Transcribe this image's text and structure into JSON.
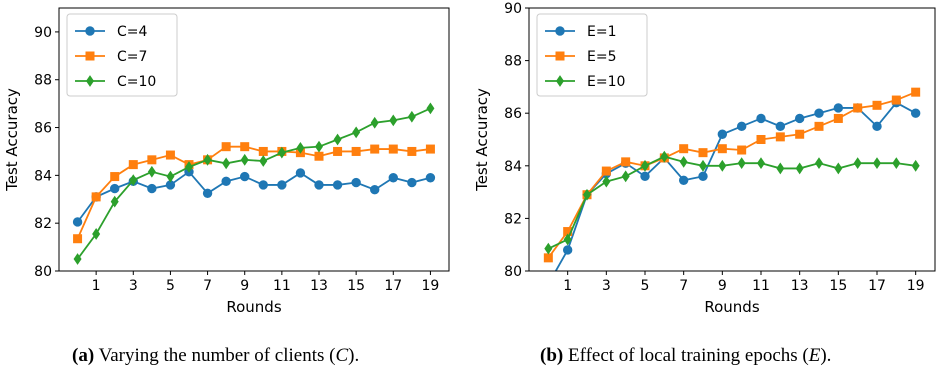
{
  "chart_data": [
    {
      "type": "line",
      "xlabel": "Rounds",
      "ylabel": "Test Accuracy",
      "xticks": [
        1,
        3,
        5,
        7,
        9,
        11,
        13,
        15,
        17,
        19
      ],
      "yticks": [
        80,
        82,
        84,
        86,
        88,
        90
      ],
      "xlim": [
        -1,
        20
      ],
      "ylim": [
        80,
        91
      ],
      "grid": false,
      "legend_position": "top-left",
      "x": [
        0,
        1,
        2,
        3,
        4,
        5,
        6,
        7,
        8,
        9,
        10,
        11,
        12,
        13,
        14,
        15,
        16,
        17,
        18,
        19
      ],
      "series": [
        {
          "name": "C=4",
          "color": "#1f77b4",
          "marker": "circle",
          "values": [
            82.05,
            83.1,
            83.45,
            83.75,
            83.45,
            83.6,
            84.15,
            83.25,
            83.75,
            83.95,
            83.6,
            83.6,
            84.1,
            83.6,
            83.6,
            83.7,
            83.4,
            83.9,
            83.7,
            83.9
          ]
        },
        {
          "name": "C=7",
          "color": "#ff7f0e",
          "marker": "square",
          "values": [
            81.35,
            83.1,
            83.95,
            84.45,
            84.65,
            84.85,
            84.45,
            84.65,
            85.2,
            85.2,
            85.0,
            85.0,
            84.95,
            84.8,
            85.0,
            85.0,
            85.1,
            85.1,
            85.0,
            85.1
          ]
        },
        {
          "name": "C=10",
          "color": "#2ca02c",
          "marker": "diamond",
          "values": [
            80.5,
            81.55,
            82.9,
            83.8,
            84.15,
            83.95,
            84.35,
            84.65,
            84.5,
            84.65,
            84.6,
            84.95,
            85.15,
            85.2,
            85.5,
            85.8,
            86.2,
            86.3,
            86.45,
            86.8
          ]
        }
      ]
    },
    {
      "type": "line",
      "xlabel": "Rounds",
      "ylabel": "Test Accuracy",
      "xticks": [
        1,
        3,
        5,
        7,
        9,
        11,
        13,
        15,
        17,
        19
      ],
      "yticks": [
        80,
        82,
        84,
        86,
        88,
        90
      ],
      "xlim": [
        -1,
        20
      ],
      "ylim": [
        80,
        90
      ],
      "grid": false,
      "legend_position": "top-left",
      "x": [
        0,
        1,
        2,
        3,
        4,
        5,
        6,
        7,
        8,
        9,
        10,
        11,
        12,
        13,
        14,
        15,
        16,
        17,
        18,
        19
      ],
      "series": [
        {
          "name": "E=1",
          "color": "#1f77b4",
          "marker": "circle",
          "values": [
            79.5,
            80.8,
            82.9,
            83.7,
            84.1,
            83.6,
            84.3,
            83.45,
            83.6,
            85.2,
            85.5,
            85.8,
            85.5,
            85.8,
            86.0,
            86.2,
            86.2,
            85.5,
            86.4,
            86.0
          ]
        },
        {
          "name": "E=5",
          "color": "#ff7f0e",
          "marker": "square",
          "values": [
            80.5,
            81.5,
            82.9,
            83.8,
            84.15,
            84.0,
            84.3,
            84.65,
            84.5,
            84.65,
            84.6,
            85.0,
            85.1,
            85.2,
            85.5,
            85.8,
            86.2,
            86.3,
            86.5,
            86.8
          ]
        },
        {
          "name": "E=10",
          "color": "#2ca02c",
          "marker": "diamond",
          "values": [
            80.85,
            81.2,
            82.9,
            83.4,
            83.6,
            84.0,
            84.35,
            84.15,
            84.0,
            84.0,
            84.1,
            84.1,
            83.9,
            83.9,
            84.1,
            83.9,
            84.1,
            84.1,
            84.1,
            84.0
          ]
        }
      ]
    }
  ],
  "captions": {
    "a": {
      "label": "(a)",
      "text": "Varying the number of clients (",
      "var": "C",
      "end": ")."
    },
    "b": {
      "label": "(b)",
      "text": "Effect of local training epochs (",
      "var": "E",
      "end": ")."
    }
  }
}
